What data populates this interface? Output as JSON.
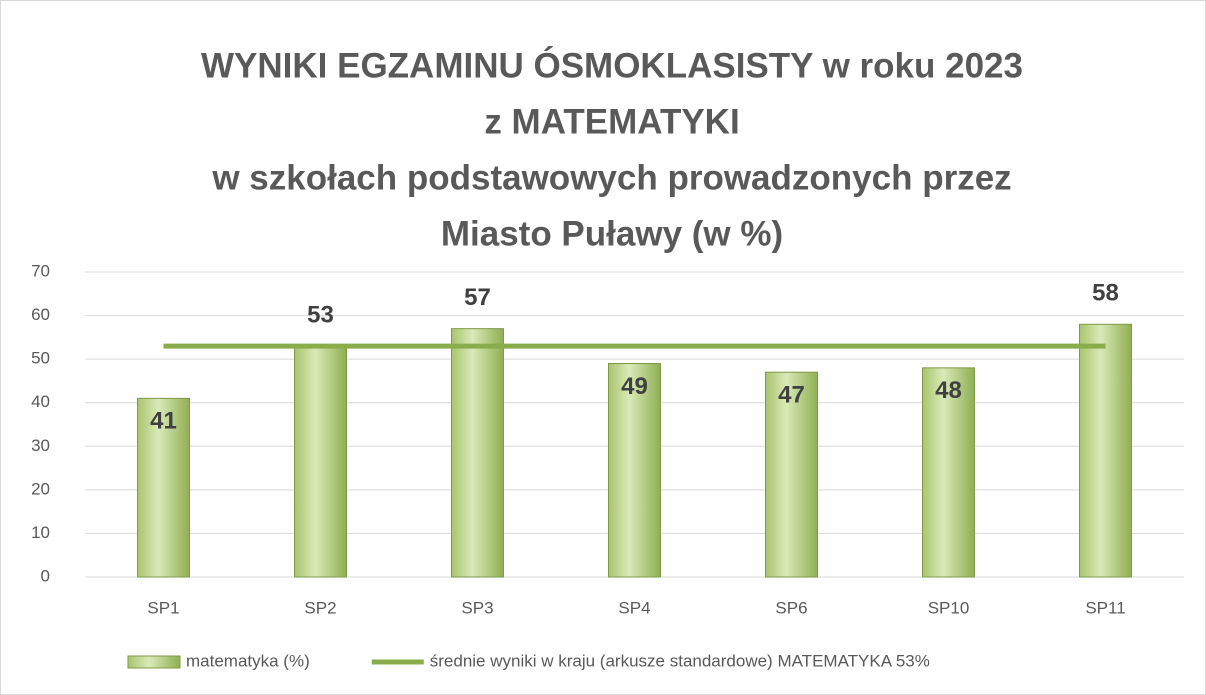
{
  "chart_data": {
    "type": "bar",
    "title": [
      "WYNIKI EGZAMINU ÓSMOKLASISTY w roku 2023",
      "z MATEMATYKI",
      "w szkołach podstawowych prowadzonych przez",
      "Miasto Puławy (w %)"
    ],
    "categories": [
      "SP1",
      "SP2",
      "SP3",
      "SP4",
      "SP6",
      "SP10",
      "SP11"
    ],
    "series": [
      {
        "name": "matematyka (%)",
        "type": "bar",
        "color": "#9bbb59",
        "values": [
          41,
          53,
          57,
          49,
          47,
          48,
          58
        ]
      },
      {
        "name": "średnie wyniki w kraju (arkusze standardowe) MATEMATYKA 53%",
        "type": "line",
        "color": "#8aad4c",
        "values": [
          53,
          53,
          53,
          53,
          53,
          53,
          53
        ]
      }
    ],
    "ylim": [
      0,
      70
    ],
    "yticks": [
      0,
      10,
      20,
      30,
      40,
      50,
      60,
      70
    ],
    "grid": true,
    "legend": "bottom"
  }
}
